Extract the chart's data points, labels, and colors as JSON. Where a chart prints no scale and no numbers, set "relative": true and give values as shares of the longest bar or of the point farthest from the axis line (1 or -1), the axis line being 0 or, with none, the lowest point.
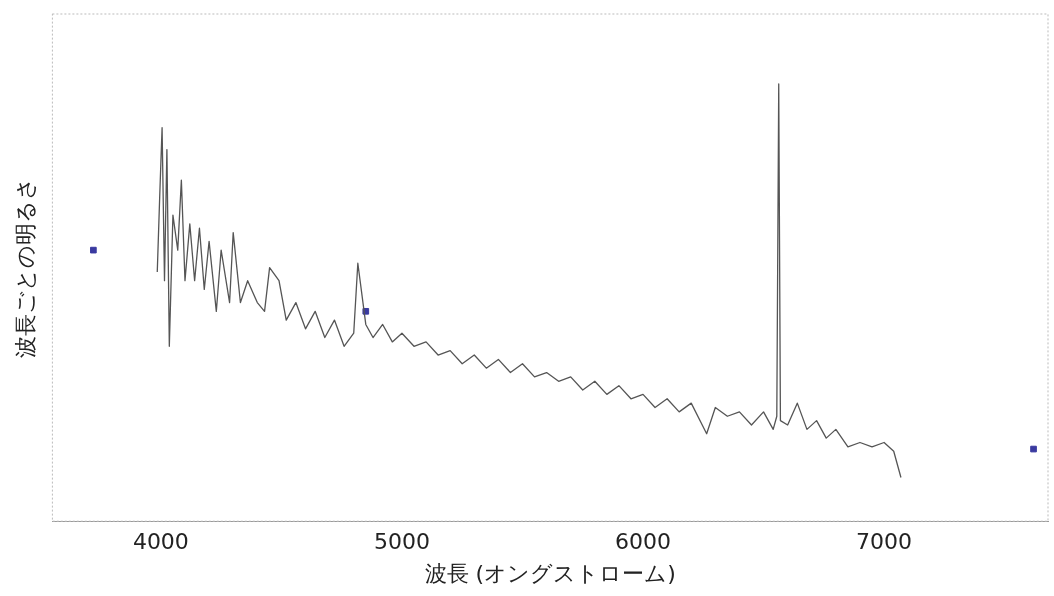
{
  "chart_data": {
    "type": "line",
    "relative": true,
    "xlabel": "波長 (オングストローム)",
    "ylabel": "波長ごとの明るさ",
    "xlim": [
      3550,
      7680
    ],
    "xticks": [
      4000,
      5000,
      6000,
      7000
    ],
    "grid": false,
    "legend": false,
    "marker": "none",
    "line_style": "solid",
    "series": [
      {
        "color": "#555555",
        "x": [
          3985,
          3995,
          4005,
          4015,
          4025,
          4035,
          4050,
          4070,
          4085,
          4100,
          4120,
          4140,
          4160,
          4180,
          4200,
          4230,
          4250,
          4285,
          4300,
          4330,
          4360,
          4400,
          4430,
          4451,
          4490,
          4520,
          4560,
          4600,
          4640,
          4680,
          4720,
          4760,
          4800,
          4817,
          4850,
          4880,
          4920,
          4960,
          5000,
          5050,
          5100,
          5150,
          5200,
          5250,
          5300,
          5350,
          5400,
          5450,
          5500,
          5550,
          5600,
          5650,
          5700,
          5750,
          5800,
          5850,
          5900,
          5950,
          6000,
          6050,
          6100,
          6150,
          6200,
          6264,
          6300,
          6350,
          6400,
          6450,
          6500,
          6540,
          6555,
          6563,
          6570,
          6600,
          6640,
          6680,
          6720,
          6760,
          6800,
          6850,
          6900,
          6950,
          7000,
          7040,
          7070
        ],
        "values": [
          0.57,
          0.74,
          0.9,
          0.55,
          0.85,
          0.4,
          0.7,
          0.62,
          0.78,
          0.55,
          0.68,
          0.55,
          0.67,
          0.53,
          0.64,
          0.48,
          0.62,
          0.5,
          0.66,
          0.5,
          0.55,
          0.5,
          0.48,
          0.58,
          0.55,
          0.46,
          0.5,
          0.44,
          0.48,
          0.42,
          0.46,
          0.4,
          0.43,
          0.59,
          0.45,
          0.42,
          0.45,
          0.41,
          0.43,
          0.4,
          0.41,
          0.38,
          0.39,
          0.36,
          0.38,
          0.35,
          0.37,
          0.34,
          0.36,
          0.33,
          0.34,
          0.32,
          0.33,
          0.3,
          0.32,
          0.29,
          0.31,
          0.28,
          0.29,
          0.26,
          0.28,
          0.25,
          0.27,
          0.2,
          0.26,
          0.24,
          0.25,
          0.22,
          0.25,
          0.21,
          0.24,
          1.0,
          0.23,
          0.22,
          0.27,
          0.21,
          0.23,
          0.19,
          0.21,
          0.17,
          0.18,
          0.17,
          0.18,
          0.16,
          0.1
        ]
      },
      {
        "type": "scatter",
        "color": "#3a3aa0",
        "marker": "square",
        "x": [
          3720,
          4850,
          7620
        ],
        "values": [
          0.62,
          0.48,
          0.165
        ]
      }
    ]
  }
}
